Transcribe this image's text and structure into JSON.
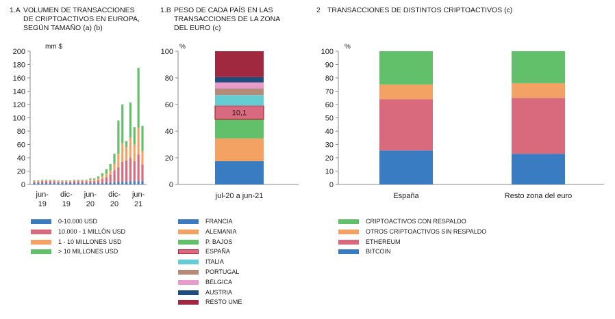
{
  "colors": {
    "blue": "#3a7cc2",
    "red": "#d9697d",
    "orange": "#f4a263",
    "green": "#62bf6a",
    "cyan": "#66ccd3",
    "brown": "#b48a78",
    "pink": "#e89acb",
    "navy": "#1f4d7e",
    "maroon": "#a1293f",
    "axis": "#888888"
  },
  "panels": {
    "p1": {
      "number": "1.A",
      "title": "VOLUMEN DE TRANSACCIONES\nDE CRIPTOACTIVOS EN EUROPA,\nSEGÚN TAMAÑO (a) (b)"
    },
    "p2": {
      "number": "1.B",
      "title": "PESO DE CADA PAÍS EN LAS\nTRANSACCIONES DE LA ZONA\nDEL EURO (c)"
    },
    "p3": {
      "number": "2",
      "title": "TRANSACCIONES DE DISTINTOS CRIPTOACTIVOS (c)"
    }
  },
  "chart_data": [
    {
      "type": "bar",
      "stacked": true,
      "unit_label": "mm $",
      "ylim": [
        0,
        200
      ],
      "yticks": [
        0,
        20,
        40,
        60,
        80,
        100,
        120,
        140,
        160,
        180,
        200
      ],
      "x_tick_labels": [
        {
          "index": 2,
          "line1": "jun-",
          "line2": "19"
        },
        {
          "index": 8,
          "line1": "dic-",
          "line2": "19"
        },
        {
          "index": 14,
          "line1": "jun-",
          "line2": "20"
        },
        {
          "index": 20,
          "line1": "dic-",
          "line2": "20"
        },
        {
          "index": 26,
          "line1": "jun-",
          "line2": "21"
        }
      ],
      "grid": false,
      "legend_position": "bottom",
      "series": [
        {
          "name": "0-10.000 USD",
          "color_key": "blue",
          "values": [
            2,
            2,
            2,
            2,
            2,
            2,
            2,
            2,
            2,
            2,
            2,
            2,
            2,
            2,
            2,
            2,
            2,
            2,
            3,
            3,
            3,
            4,
            4,
            4,
            5,
            5,
            5,
            5
          ]
        },
        {
          "name": "10.000 - 1 MILLÓN USD",
          "color_key": "red",
          "values": [
            2,
            2,
            3,
            3,
            3,
            3,
            2,
            2,
            2,
            2,
            3,
            3,
            3,
            3,
            3,
            3,
            4,
            6,
            8,
            12,
            18,
            22,
            30,
            32,
            35,
            30,
            40,
            25
          ]
        },
        {
          "name": "1 - 10 MILLONES USD",
          "color_key": "orange",
          "values": [
            1,
            1,
            1,
            1,
            1,
            1,
            1,
            1,
            1,
            1,
            1,
            1,
            1,
            1,
            2,
            2,
            3,
            4,
            5,
            6,
            10,
            20,
            28,
            20,
            30,
            25,
            40,
            20
          ]
        },
        {
          "name": "> 10 MILLONES USD",
          "color_key": "green",
          "values": [
            1,
            1,
            1,
            1,
            1,
            1,
            1,
            1,
            1,
            1,
            1,
            1,
            1,
            1,
            2,
            2,
            3,
            5,
            7,
            10,
            15,
            50,
            58,
            9,
            53,
            26,
            90,
            38
          ]
        }
      ]
    },
    {
      "type": "bar",
      "stacked": true,
      "unit_label": "%",
      "ylim": [
        0,
        100
      ],
      "yticks": [
        0,
        20,
        40,
        60,
        80,
        100
      ],
      "categories": [
        "jul-20 a jun-21"
      ],
      "grid": false,
      "legend_position": "bottom",
      "series": [
        {
          "name": "FRANCIA",
          "color_key": "blue",
          "values": [
            17.5
          ]
        },
        {
          "name": "ALEMANIA",
          "color_key": "orange",
          "values": [
            17
          ]
        },
        {
          "name": "P. BAJOS",
          "color_key": "green",
          "values": [
            14.5
          ]
        },
        {
          "name": "ESPAÑA",
          "color_key": "red",
          "values": [
            10.1
          ],
          "data_label": "10,1",
          "outlined": true
        },
        {
          "name": "ITALIA",
          "color_key": "cyan",
          "values": [
            8
          ]
        },
        {
          "name": "PORTUGAL",
          "color_key": "brown",
          "values": [
            5
          ]
        },
        {
          "name": "BÉLGICA",
          "color_key": "pink",
          "values": [
            4.5
          ]
        },
        {
          "name": "AUSTRIA",
          "color_key": "navy",
          "values": [
            4
          ]
        },
        {
          "name": "RESTO UME",
          "color_key": "maroon",
          "values": [
            19.4
          ]
        }
      ]
    },
    {
      "type": "bar",
      "stacked": true,
      "unit_label": "%",
      "ylim": [
        0,
        100
      ],
      "yticks": [
        0,
        10,
        20,
        30,
        40,
        50,
        60,
        70,
        80,
        90,
        100
      ],
      "categories": [
        "España",
        "Resto zona del euro"
      ],
      "grid": false,
      "legend_position": "bottom",
      "series": [
        {
          "name": "BITCOIN",
          "color_key": "blue",
          "values": [
            25.5,
            23
          ]
        },
        {
          "name": "ETHEREUM",
          "color_key": "red",
          "values": [
            38.5,
            42
          ]
        },
        {
          "name": "OTROS CRIPTOACTIVOS SIN RESPALDO",
          "color_key": "orange",
          "values": [
            11,
            11
          ]
        },
        {
          "name": "CRIPTOACTIVOS CON RESPALDO",
          "color_key": "green",
          "values": [
            25,
            24
          ]
        }
      ]
    }
  ]
}
